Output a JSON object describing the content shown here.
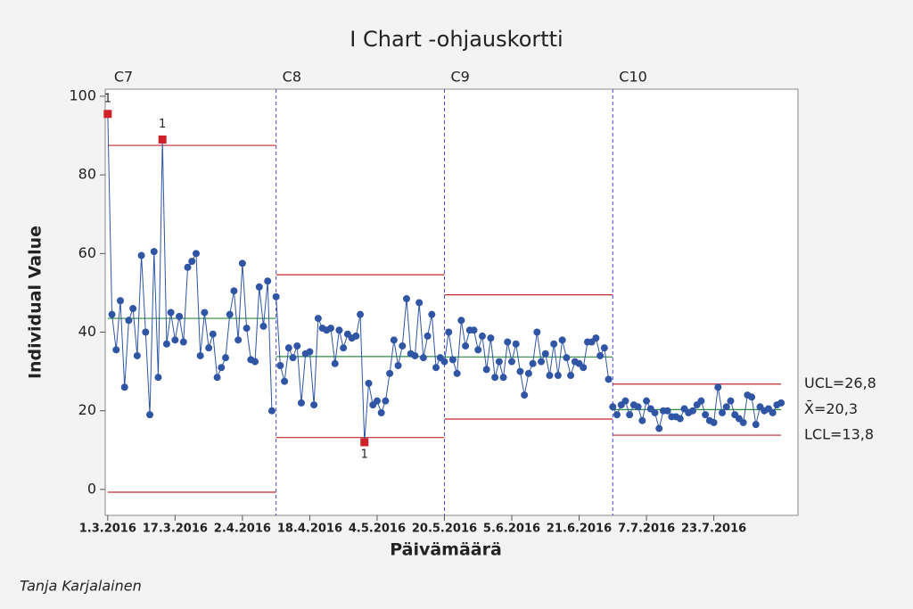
{
  "chart_data": {
    "type": "i-chart",
    "title": "I Chart -ohjauskortti",
    "y_label": "Individual Value",
    "x_label": "Päivämäärä",
    "footer": "Tanja Karjalainen",
    "color": "#2f55a4",
    "limit_color": "#c0282d",
    "mean_color": "#2e8b3e",
    "flag_color": "#d0202a",
    "ylim": [
      -6.6,
      101.8
    ],
    "yticks": [
      0,
      20,
      40,
      60,
      80,
      100
    ],
    "xlim": [
      -0.6,
      164
    ],
    "xticks": [
      {
        "value": 0,
        "label": "1.3.2016"
      },
      {
        "value": 16,
        "label": "17.3.2016"
      },
      {
        "value": 32,
        "label": "2.4.2016"
      },
      {
        "value": 48,
        "label": "18.4.2016"
      },
      {
        "value": 64,
        "label": "4.5.2016"
      },
      {
        "value": 80,
        "label": "20.5.2016"
      },
      {
        "value": 96,
        "label": "5.6.2016"
      },
      {
        "value": 112,
        "label": "21.6.2016"
      },
      {
        "value": 128,
        "label": "7.7.2016"
      },
      {
        "value": 144,
        "label": "23.7.2016"
      }
    ],
    "stages": [
      {
        "name": "C7",
        "ucl": 87.5,
        "mean": 43.5,
        "lcl": -0.7,
        "flagged": [
          0,
          13
        ],
        "flag_labels": [
          "1",
          "1"
        ],
        "values": [
          95.5,
          44.5,
          35.5,
          48,
          26,
          43,
          46,
          34,
          59.5,
          40,
          19,
          60.5,
          28.5,
          89,
          37,
          45,
          38,
          44,
          37.5,
          56.5,
          58,
          60,
          34,
          45,
          36,
          39.5,
          28.5,
          31,
          33.5,
          44.5,
          50.5,
          38,
          57.5,
          41,
          33,
          32.5,
          51.5,
          41.5,
          53,
          20
        ]
      },
      {
        "name": "C8",
        "ucl": 54.6,
        "mean": 33.8,
        "lcl": 13.2,
        "flagged": [
          21
        ],
        "flag_labels": [
          "1"
        ],
        "values": [
          49,
          31.5,
          27.5,
          36,
          33.5,
          36.5,
          22,
          34.5,
          35,
          21.5,
          43.5,
          41,
          40.5,
          41,
          32,
          40.5,
          36,
          39.5,
          38.5,
          39,
          44.5,
          12,
          27,
          21.5,
          22.5,
          19.5,
          22.5,
          29.5,
          38,
          31.5,
          36.5,
          48.5,
          34.5,
          34,
          47.5,
          33.5,
          39,
          44.5,
          31,
          33.5
        ]
      },
      {
        "name": "C9",
        "ucl": 49.5,
        "mean": 33.7,
        "lcl": 17.9,
        "flagged": [],
        "flag_labels": [],
        "values": [
          32.5,
          40,
          33,
          29.5,
          43,
          36.5,
          40.5,
          40.5,
          35.5,
          39,
          30.5,
          38.5,
          28.5,
          32.5,
          28.5,
          37.5,
          32.5,
          37,
          30,
          24,
          29.5,
          32,
          40,
          32.5,
          34.5,
          29,
          37,
          29,
          38,
          33.5,
          29,
          32.5,
          32,
          31,
          37.5,
          37.5,
          38.5,
          34,
          36,
          28
        ]
      },
      {
        "name": "C10",
        "ucl": 26.8,
        "mean": 20.3,
        "lcl": 13.8,
        "flagged": [],
        "flag_labels": [],
        "limit_labels": [
          "UCL=26,8",
          "X̄=20,3",
          "LCL=13,8"
        ],
        "values": [
          21,
          19,
          21.5,
          22.5,
          19,
          21.5,
          21,
          17.5,
          22.5,
          20.5,
          19.5,
          15.5,
          20,
          20,
          18.5,
          18.5,
          18,
          20.5,
          19.5,
          20,
          21.5,
          22.5,
          19,
          17.5,
          17,
          26,
          19.5,
          21,
          22.5,
          19,
          18,
          17,
          24,
          23.5,
          16.5,
          21,
          20,
          20.5,
          19.5,
          21.5,
          22
        ]
      }
    ]
  }
}
